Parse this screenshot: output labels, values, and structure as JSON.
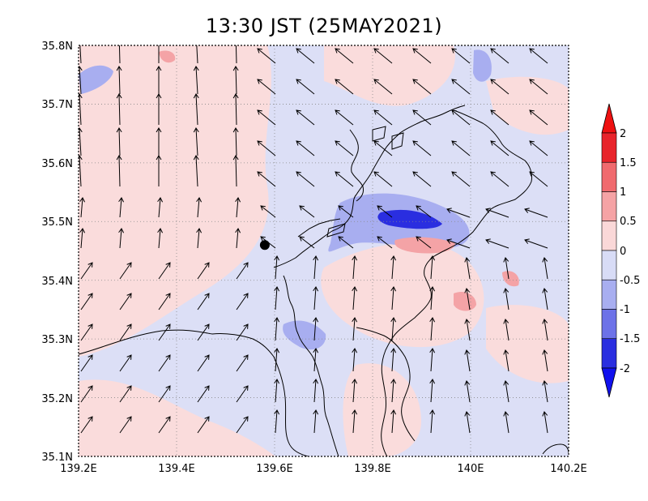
{
  "title": "13:30 JST (25MAY2021)",
  "map": {
    "x_ticks": [
      "139.2E",
      "139.4E",
      "139.6E",
      "139.8E",
      "140E",
      "140.2E"
    ],
    "y_ticks": [
      "35.1N",
      "35.2N",
      "35.3N",
      "35.4N",
      "35.5N",
      "35.6N",
      "35.7N",
      "35.8N"
    ],
    "lon_range": [
      139.2,
      140.2
    ],
    "lat_range": [
      35.1,
      35.8
    ],
    "grid": "dotted",
    "marker": {
      "lon": 139.58,
      "lat": 35.46
    }
  },
  "colorbar": {
    "labels": [
      "2",
      "1.5",
      "1",
      "0.5",
      "0",
      "-0.5",
      "-1",
      "-1.5",
      "-2"
    ],
    "colors": [
      "#e8242b",
      "#f06a6e",
      "#f5a3a5",
      "#fad8d8",
      "#d8dcf6",
      "#a8aef0",
      "#6d72e8",
      "#2a2ee0"
    ],
    "over_color": "#ee1111",
    "under_color": "#1111ee",
    "placement": "right"
  },
  "colors": {
    "positive_light": "#fadcdc",
    "negative_light": "#dcdff6",
    "negative_mid": "#a8aef0",
    "negative_strong": "#2a2ee0",
    "positive_mid": "#f4a3a6"
  }
}
